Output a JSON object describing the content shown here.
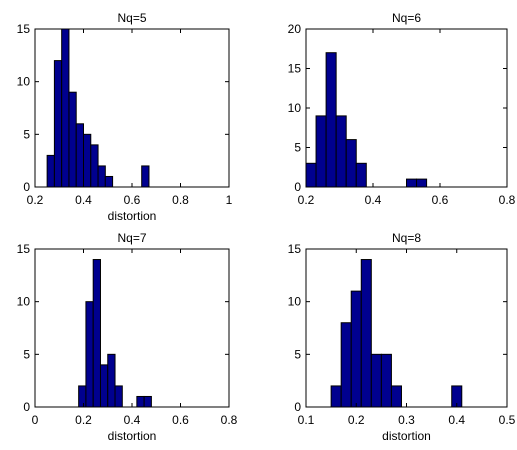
{
  "colors": {
    "bar_fill": "#00008F",
    "bar_edge": "#000000",
    "axes": "#000000",
    "background": "#FFFFFF"
  },
  "chart_data": [
    {
      "type": "bar",
      "title": "Nq=5",
      "xlabel": "distortion",
      "ylabel": "",
      "xlim": [
        0.2,
        1
      ],
      "ylim": [
        0,
        15
      ],
      "xticks": [
        0.2,
        0.4,
        0.6,
        0.8,
        1
      ],
      "xtick_labels": [
        "0.2",
        "0.4",
        "0.6",
        "0.8",
        "1"
      ],
      "yticks": [
        0,
        5,
        10,
        15
      ],
      "ytick_labels": [
        "0",
        "5",
        "10",
        "15"
      ],
      "bin_edges": [
        0.25,
        0.28,
        0.31,
        0.34,
        0.37,
        0.4,
        0.43,
        0.46,
        0.49,
        0.52,
        0.55,
        0.58,
        0.61,
        0.64,
        0.67,
        0.7
      ],
      "values": [
        3,
        12,
        15,
        9,
        6,
        5,
        4,
        2,
        1,
        0,
        0,
        0,
        0,
        2,
        0
      ]
    },
    {
      "type": "bar",
      "title": "Nq=6",
      "xlabel": "",
      "ylabel": "",
      "xlim": [
        0.2,
        0.8
      ],
      "ylim": [
        0,
        20
      ],
      "xticks": [
        0.2,
        0.4,
        0.6,
        0.8
      ],
      "xtick_labels": [
        "0.2",
        "0.4",
        "0.6",
        "0.8"
      ],
      "yticks": [
        0,
        5,
        10,
        15,
        20
      ],
      "ytick_labels": [
        "0",
        "5",
        "10",
        "15",
        "20"
      ],
      "bin_edges": [
        0.2,
        0.23,
        0.26,
        0.29,
        0.32,
        0.35,
        0.38,
        0.41,
        0.44,
        0.47,
        0.5,
        0.53,
        0.56,
        0.59
      ],
      "values": [
        3,
        9,
        17,
        9,
        6,
        3,
        0,
        0,
        0,
        0,
        1,
        1,
        0
      ]
    },
    {
      "type": "bar",
      "title": "Nq=7",
      "xlabel": "distortion",
      "ylabel": "",
      "xlim": [
        0,
        0.8
      ],
      "ylim": [
        0,
        15
      ],
      "xticks": [
        0,
        0.2,
        0.4,
        0.6,
        0.8
      ],
      "xtick_labels": [
        "0",
        "0.2",
        "0.4",
        "0.6",
        "0.8"
      ],
      "yticks": [
        0,
        5,
        10,
        15
      ],
      "ytick_labels": [
        "0",
        "5",
        "10",
        "15"
      ],
      "bin_edges": [
        0.18,
        0.21,
        0.24,
        0.27,
        0.3,
        0.33,
        0.36,
        0.39,
        0.42,
        0.45,
        0.48,
        0.51
      ],
      "values": [
        2,
        10,
        14,
        4,
        5,
        2,
        0,
        0,
        1,
        1,
        0
      ]
    },
    {
      "type": "bar",
      "title": "Nq=8",
      "xlabel": "distortion",
      "ylabel": "",
      "xlim": [
        0.1,
        0.5
      ],
      "ylim": [
        0,
        15
      ],
      "xticks": [
        0.1,
        0.2,
        0.3,
        0.4,
        0.5
      ],
      "xtick_labels": [
        "0.1",
        "0.2",
        "0.3",
        "0.4",
        "0.5"
      ],
      "yticks": [
        0,
        5,
        10,
        15
      ],
      "ytick_labels": [
        "0",
        "5",
        "10",
        "15"
      ],
      "bin_edges": [
        0.15,
        0.17,
        0.19,
        0.21,
        0.23,
        0.25,
        0.27,
        0.29,
        0.31,
        0.33,
        0.35,
        0.37,
        0.39,
        0.41,
        0.43
      ],
      "values": [
        2,
        8,
        11,
        14,
        5,
        5,
        2,
        0,
        0,
        0,
        0,
        0,
        2,
        0
      ]
    }
  ]
}
